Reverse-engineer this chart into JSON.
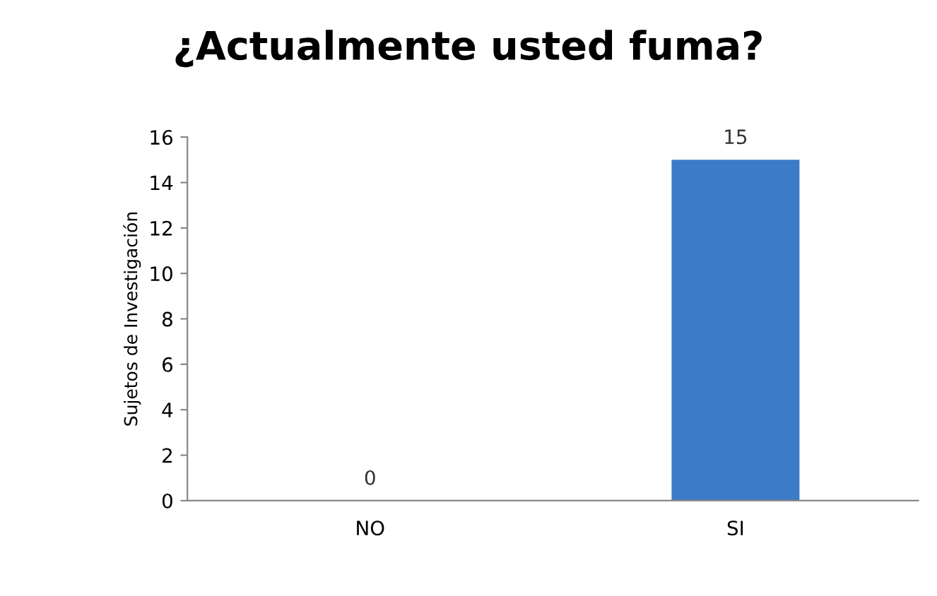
{
  "chart_data": {
    "type": "bar",
    "title": "¿Actualmente usted fuma?",
    "ylabel": "Sujetos de Investigación",
    "categories": [
      "NO",
      "SI"
    ],
    "values": [
      0,
      15
    ],
    "color": "#3b7bc8",
    "ylim": [
      0,
      16
    ],
    "yticks": [
      0,
      2,
      4,
      6,
      8,
      10,
      12,
      14,
      16
    ],
    "data_labels": true,
    "grid": false,
    "legend": false
  }
}
